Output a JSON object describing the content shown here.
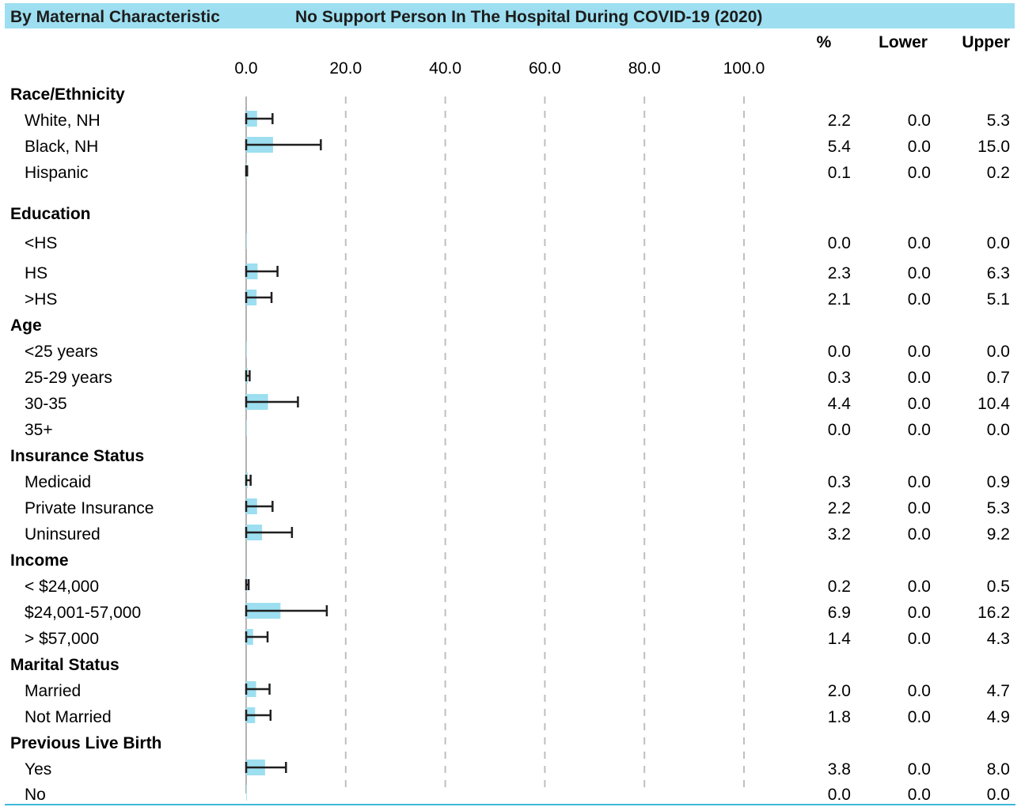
{
  "header": {
    "left_title": "By Maternal Characteristic",
    "right_title": "No Support Person In The Hospital During COVID-19 (2020)"
  },
  "columns": {
    "pct": "%",
    "lower": "Lower",
    "upper": "Upper"
  },
  "colors": {
    "header_band": "#9ddff0",
    "bar": "#9ddff0",
    "error_bar": "#1f1f1f",
    "grid": "#bfbfbf",
    "bottom_rule": "#3fb8d8"
  },
  "chart_data": {
    "type": "bar",
    "orientation": "horizontal",
    "x_ticks": [
      "0.0",
      "20.0",
      "40.0",
      "60.0",
      "80.0",
      "100.0"
    ],
    "xlim": [
      0,
      100
    ],
    "grid": true,
    "rows": [
      {
        "label": "Race/Ethnicity",
        "kind": "group"
      },
      {
        "label": "White, NH",
        "kind": "item",
        "pct": "2.2",
        "lower": "0.0",
        "upper": "5.3"
      },
      {
        "label": "Black, NH",
        "kind": "item",
        "pct": "5.4",
        "lower": "0.0",
        "upper": "15.0"
      },
      {
        "label": "Hispanic",
        "kind": "item",
        "pct": "0.1",
        "lower": "0.0",
        "upper": "0.2"
      },
      {
        "label": "Education",
        "kind": "group"
      },
      {
        "label": "<HS",
        "kind": "item",
        "pct": "0.0",
        "lower": "0.0",
        "upper": "0.0"
      },
      {
        "label": "HS",
        "kind": "item",
        "pct": "2.3",
        "lower": "0.0",
        "upper": "6.3"
      },
      {
        "label": ">HS",
        "kind": "item",
        "pct": "2.1",
        "lower": "0.0",
        "upper": "5.1"
      },
      {
        "label": "Age",
        "kind": "group"
      },
      {
        "label": "<25 years",
        "kind": "item",
        "pct": "0.0",
        "lower": "0.0",
        "upper": "0.0"
      },
      {
        "label": "25-29 years",
        "kind": "item",
        "pct": "0.3",
        "lower": "0.0",
        "upper": "0.7"
      },
      {
        "label": "30-35",
        "kind": "item",
        "pct": "4.4",
        "lower": "0.0",
        "upper": "10.4"
      },
      {
        "label": "35+",
        "kind": "item",
        "pct": "0.0",
        "lower": "0.0",
        "upper": "0.0"
      },
      {
        "label": "Insurance Status",
        "kind": "group"
      },
      {
        "label": "Medicaid",
        "kind": "item",
        "pct": "0.3",
        "lower": "0.0",
        "upper": "0.9"
      },
      {
        "label": "Private Insurance",
        "kind": "item",
        "pct": "2.2",
        "lower": "0.0",
        "upper": "5.3"
      },
      {
        "label": "Uninsured",
        "kind": "item",
        "pct": "3.2",
        "lower": "0.0",
        "upper": "9.2"
      },
      {
        "label": "Income",
        "kind": "group"
      },
      {
        "label": "< $24,000",
        "kind": "item",
        "pct": "0.2",
        "lower": "0.0",
        "upper": "0.5"
      },
      {
        "label": "$24,001-57,000",
        "kind": "item",
        "pct": "6.9",
        "lower": "0.0",
        "upper": "16.2"
      },
      {
        "label": "> $57,000",
        "kind": "item",
        "pct": "1.4",
        "lower": "0.0",
        "upper": "4.3"
      },
      {
        "label": "Marital Status",
        "kind": "group"
      },
      {
        "label": "Married",
        "kind": "item",
        "pct": "2.0",
        "lower": "0.0",
        "upper": "4.7"
      },
      {
        "label": "Not Married",
        "kind": "item",
        "pct": "1.8",
        "lower": "0.0",
        "upper": "4.9"
      },
      {
        "label": "Previous Live Birth",
        "kind": "group"
      },
      {
        "label": "Yes",
        "kind": "item",
        "pct": "3.8",
        "lower": "0.0",
        "upper": "8.0"
      },
      {
        "label": "No",
        "kind": "item",
        "pct": "0.0",
        "lower": "0.0",
        "upper": "0.0"
      }
    ]
  }
}
